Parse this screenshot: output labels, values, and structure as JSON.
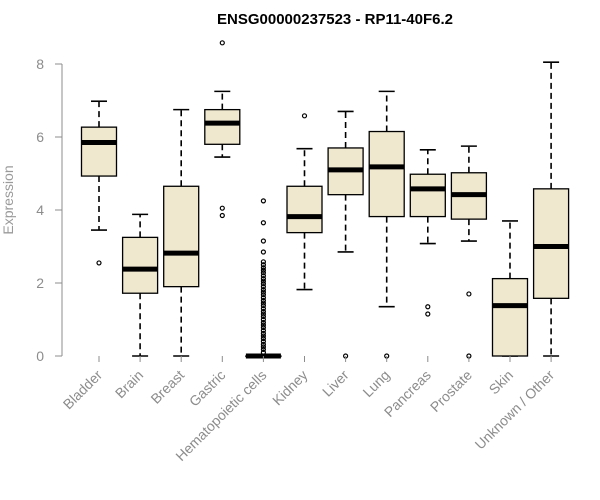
{
  "chart_data": {
    "type": "boxplot",
    "title": "ENSG00000237523 - RP11-40F6.2",
    "xlabel": "",
    "ylabel": "Expression",
    "ylim": [
      0,
      8.6
    ],
    "yticks": [
      0,
      2,
      4,
      6,
      8
    ],
    "colors": {
      "box_fill": "#efe8cf",
      "stroke": "#000000",
      "axis": "#8c8c8c"
    },
    "categories": [
      "Bladder",
      "Brain",
      "Breast",
      "Gastric",
      "Hematopoietic cells",
      "Kidney",
      "Liver",
      "Lung",
      "Pancreas",
      "Prostate",
      "Skin",
      "Unknown / Other"
    ],
    "boxes": [
      {
        "name": "Bladder",
        "whisker_low": 3.45,
        "q1": 4.93,
        "median": 5.85,
        "q3": 6.27,
        "whisker_high": 6.98,
        "outliers": [
          2.55
        ]
      },
      {
        "name": "Brain",
        "whisker_low": 0.0,
        "q1": 1.72,
        "median": 2.38,
        "q3": 3.25,
        "whisker_high": 3.88,
        "outliers": []
      },
      {
        "name": "Breast",
        "whisker_low": 0.0,
        "q1": 1.9,
        "median": 2.82,
        "q3": 4.65,
        "whisker_high": 6.75,
        "outliers": []
      },
      {
        "name": "Gastric",
        "whisker_low": 5.45,
        "q1": 5.8,
        "median": 6.38,
        "q3": 6.75,
        "whisker_high": 7.25,
        "outliers": [
          8.58,
          4.05,
          3.85
        ]
      },
      {
        "name": "Hematopoietic cells",
        "whisker_low": 0.0,
        "q1": 0.0,
        "median": 0.0,
        "q3": 0.0,
        "whisker_high": 0.0,
        "outliers": [
          4.25,
          3.65,
          3.15,
          2.85,
          2.58,
          2.5,
          2.42,
          2.35,
          2.28,
          2.2,
          2.12,
          2.05,
          1.98,
          1.9,
          1.82,
          1.75,
          1.68,
          1.6,
          1.52,
          1.45,
          1.38,
          1.3,
          1.22,
          1.15,
          1.08,
          1.0,
          0.92,
          0.85,
          0.78,
          0.7,
          0.62,
          0.55,
          0.48,
          0.4,
          0.32,
          0.25,
          0.18,
          0.1
        ]
      },
      {
        "name": "Kidney",
        "whisker_low": 1.82,
        "q1": 3.38,
        "median": 3.82,
        "q3": 4.65,
        "whisker_high": 5.68,
        "outliers": [
          6.58
        ]
      },
      {
        "name": "Liver",
        "whisker_low": 2.85,
        "q1": 4.42,
        "median": 5.1,
        "q3": 5.7,
        "whisker_high": 6.7,
        "outliers": [
          0.0
        ]
      },
      {
        "name": "Lung",
        "whisker_low": 1.35,
        "q1": 3.82,
        "median": 5.18,
        "q3": 6.15,
        "whisker_high": 7.25,
        "outliers": [
          0.0
        ]
      },
      {
        "name": "Pancreas",
        "whisker_low": 3.08,
        "q1": 3.82,
        "median": 4.58,
        "q3": 4.98,
        "whisker_high": 5.65,
        "outliers": [
          1.35,
          1.15
        ]
      },
      {
        "name": "Prostate",
        "whisker_low": 3.15,
        "q1": 3.75,
        "median": 4.42,
        "q3": 5.02,
        "whisker_high": 5.75,
        "outliers": [
          1.7,
          0.0
        ]
      },
      {
        "name": "Skin",
        "whisker_low": 0.0,
        "q1": 0.0,
        "median": 1.38,
        "q3": 2.12,
        "whisker_high": 3.7,
        "outliers": []
      },
      {
        "name": "Unknown / Other",
        "whisker_low": 0.0,
        "q1": 1.58,
        "median": 3.0,
        "q3": 4.58,
        "whisker_high": 8.05,
        "outliers": []
      }
    ]
  }
}
